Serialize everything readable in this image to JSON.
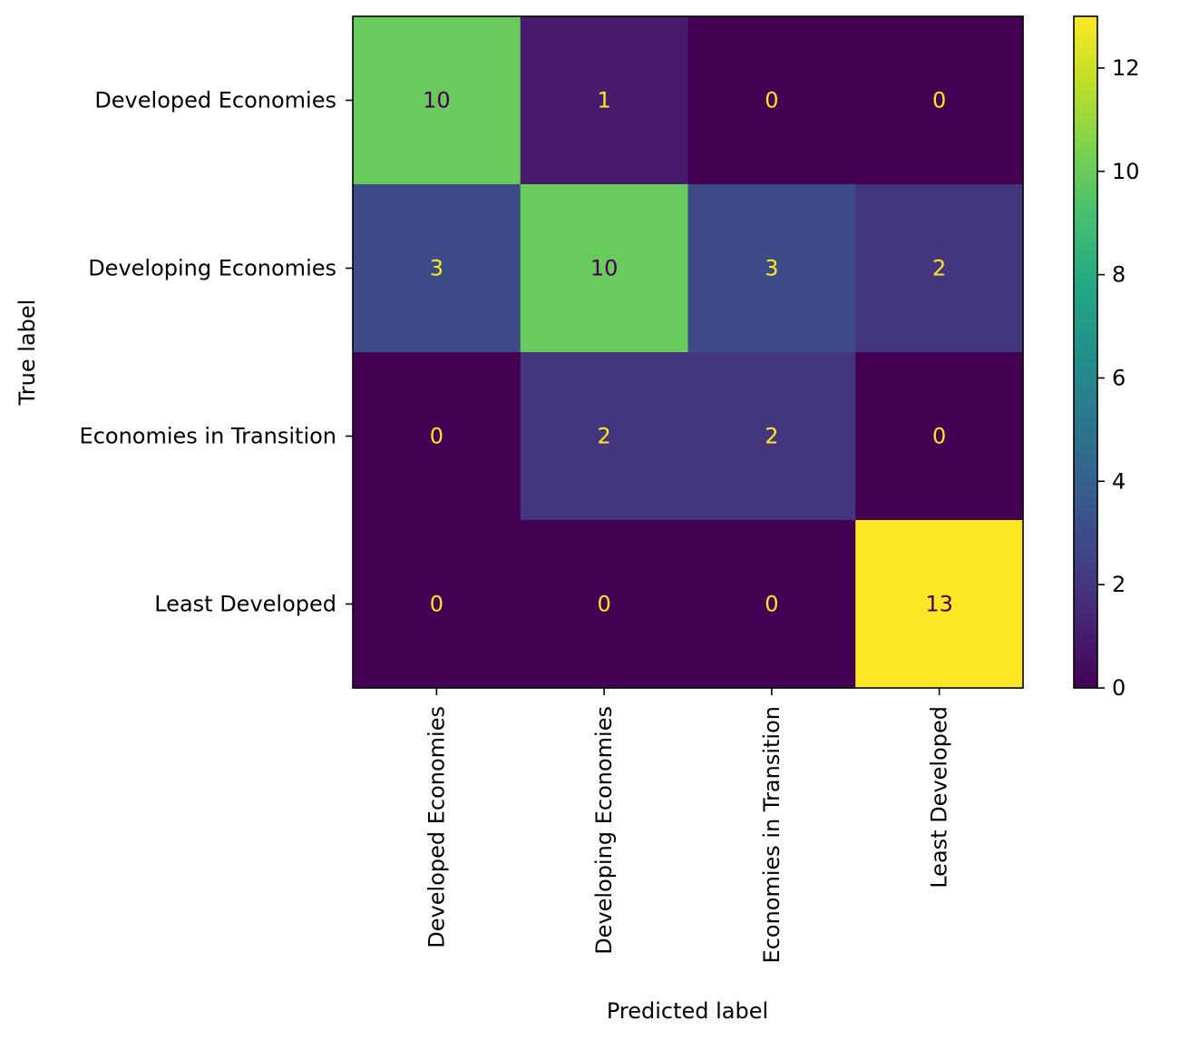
{
  "chart_data": {
    "type": "heatmap",
    "title": "",
    "xlabel": "Predicted label",
    "ylabel": "True label",
    "x_categories": [
      "Developed Economies",
      "Developing Economies",
      "Economies in Transition",
      "Least Developed"
    ],
    "y_categories": [
      "Developed Economies",
      "Developing Economies",
      "Economies in Transition",
      "Least Developed"
    ],
    "matrix": [
      [
        10,
        1,
        0,
        0
      ],
      [
        3,
        10,
        3,
        2
      ],
      [
        0,
        2,
        2,
        0
      ],
      [
        0,
        0,
        0,
        13
      ]
    ],
    "colormap": "viridis",
    "color_range": [
      0,
      13
    ],
    "colorbar_ticks": [
      "0",
      "2",
      "4",
      "6",
      "8",
      "10",
      "12"
    ],
    "colorbar_tick_values": [
      0,
      2,
      4,
      6,
      8,
      10,
      12
    ],
    "grid": false
  }
}
